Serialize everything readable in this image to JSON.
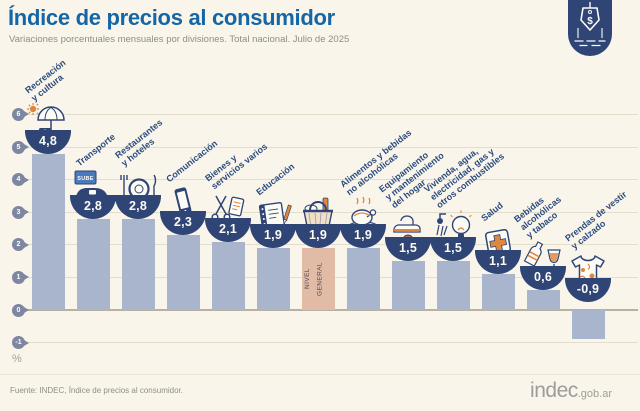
{
  "header": {
    "title": "Índice de precios al consumidor",
    "subtitle": "Variaciones porcentuales mensuales por divisiones. Total nacional. Julio de 2025",
    "badge_icon": "price-tag-icon",
    "badge_symbol": "$"
  },
  "colors": {
    "background": "#F9F5EA",
    "title_blue": "#1566A6",
    "bar_blue": "#A9B5CD",
    "bar_highlight_salmon": "#E2BBA6",
    "medallion_navy": "#2F4576",
    "accent_orange": "#E0873F",
    "axis_pin": "#7E87A0",
    "gridline": "#E3DDCC"
  },
  "chart_data": {
    "type": "bar",
    "title": "Índice de precios al consumidor",
    "subtitle": "Variaciones porcentuales mensuales por divisiones. Total nacional. Julio de 2025",
    "unit": "%",
    "ylim": [
      -1,
      6
    ],
    "yticks": [
      6,
      5,
      4,
      3,
      2,
      1,
      0,
      -1
    ],
    "grid": true,
    "legend_position": "none",
    "categories": [
      "Recreación y cultura",
      "Transporte",
      "Restaurantes y hoteles",
      "Comunicación",
      "Bienes y servicios varios",
      "Educación",
      "Nivel general",
      "Alimentos y bebidas no alcohólicas",
      "Equipamiento y mantenimiento del hogar",
      "Vivienda, agua, electricidad, gas y otros combustibles",
      "Salud",
      "Bebidas alcohólicas y tabaco",
      "Prendas de vestir y calzado"
    ],
    "values": [
      4.8,
      2.8,
      2.8,
      2.3,
      2.1,
      1.9,
      1.9,
      1.9,
      1.5,
      1.5,
      1.1,
      0.6,
      -0.9
    ],
    "items": [
      {
        "label": "Recreación y cultura",
        "label_lines": "Recreación\ny cultura",
        "value": 4.8,
        "display": "4,8",
        "icon": "sun-umbrella-icon"
      },
      {
        "label": "Transporte",
        "label_lines": "Transporte",
        "value": 2.8,
        "display": "2,8",
        "icon": "car-sube-icon",
        "card_text": "SUBE"
      },
      {
        "label": "Restaurantes y hoteles",
        "label_lines": "Restaurantes\ny hoteles",
        "value": 2.8,
        "display": "2,8",
        "icon": "plate-cutlery-icon"
      },
      {
        "label": "Comunicación",
        "label_lines": "Comunicación",
        "value": 2.3,
        "display": "2,3",
        "icon": "smartphone-icon"
      },
      {
        "label": "Bienes y servicios varios",
        "label_lines": "Bienes y\nservicios varios",
        "value": 2.1,
        "display": "2,1",
        "icon": "scissors-comb-icon"
      },
      {
        "label": "Educación",
        "label_lines": "Educación",
        "value": 1.9,
        "display": "1,9",
        "icon": "notebook-pencil-icon"
      },
      {
        "label": "Nivel general",
        "value": 1.9,
        "display": "1,9",
        "icon": "grocery-basket-icon",
        "in_bar_label": "NIVEL\nGENERAL",
        "highlight": true
      },
      {
        "label": "Alimentos y bebidas no alcohólicas",
        "label_lines": "Alimentos y bebidas\nno alcohólicas",
        "value": 1.9,
        "display": "1,9",
        "icon": "roast-chicken-icon"
      },
      {
        "label": "Equipamiento y mantenimiento del hogar",
        "label_lines": "Equipamiento\ny mantenimiento\ndel hogar",
        "value": 1.5,
        "display": "1,5",
        "icon": "iron-pot-icon"
      },
      {
        "label": "Vivienda, agua, electricidad, gas y otros combustibles",
        "label_lines": "Vivienda, agua,\nelectricidad, gas y\notros combustibles",
        "value": 1.5,
        "display": "1,5",
        "icon": "bulb-shower-icon"
      },
      {
        "label": "Salud",
        "label_lines": "Salud",
        "value": 1.1,
        "display": "1,1",
        "icon": "first-aid-icon"
      },
      {
        "label": "Bebidas alcohólicas y tabaco",
        "label_lines": "Bebidas\nalcohólicas\ny tabaco",
        "value": 0.6,
        "display": "0,6",
        "icon": "bottle-glass-icon"
      },
      {
        "label": "Prendas de vestir y calzado",
        "label_lines": "Prendas de vestir\ny calzado",
        "value": -0.9,
        "display": "-0,9",
        "icon": "tshirt-icon"
      }
    ]
  },
  "footer": {
    "source": "Fuente: INDEC, Índice de precios al consumidor.",
    "logo_text": "indec",
    "logo_suffix": ".gob.ar"
  }
}
